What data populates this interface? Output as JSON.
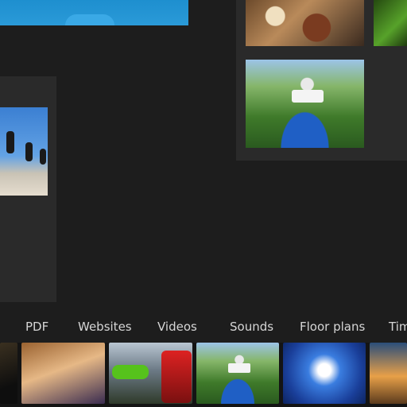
{
  "nav": {
    "items": [
      {
        "label": "PDF"
      },
      {
        "label": "Websites"
      },
      {
        "label": "Videos"
      },
      {
        "label": "Sounds"
      },
      {
        "label": "Floor plans"
      },
      {
        "label": "Tim"
      }
    ]
  },
  "colors": {
    "background": "#1d1d1d",
    "panel": "#2a2a2a",
    "accent_blue": "#1e8fcf",
    "nav_text": "#d6d6d6"
  }
}
